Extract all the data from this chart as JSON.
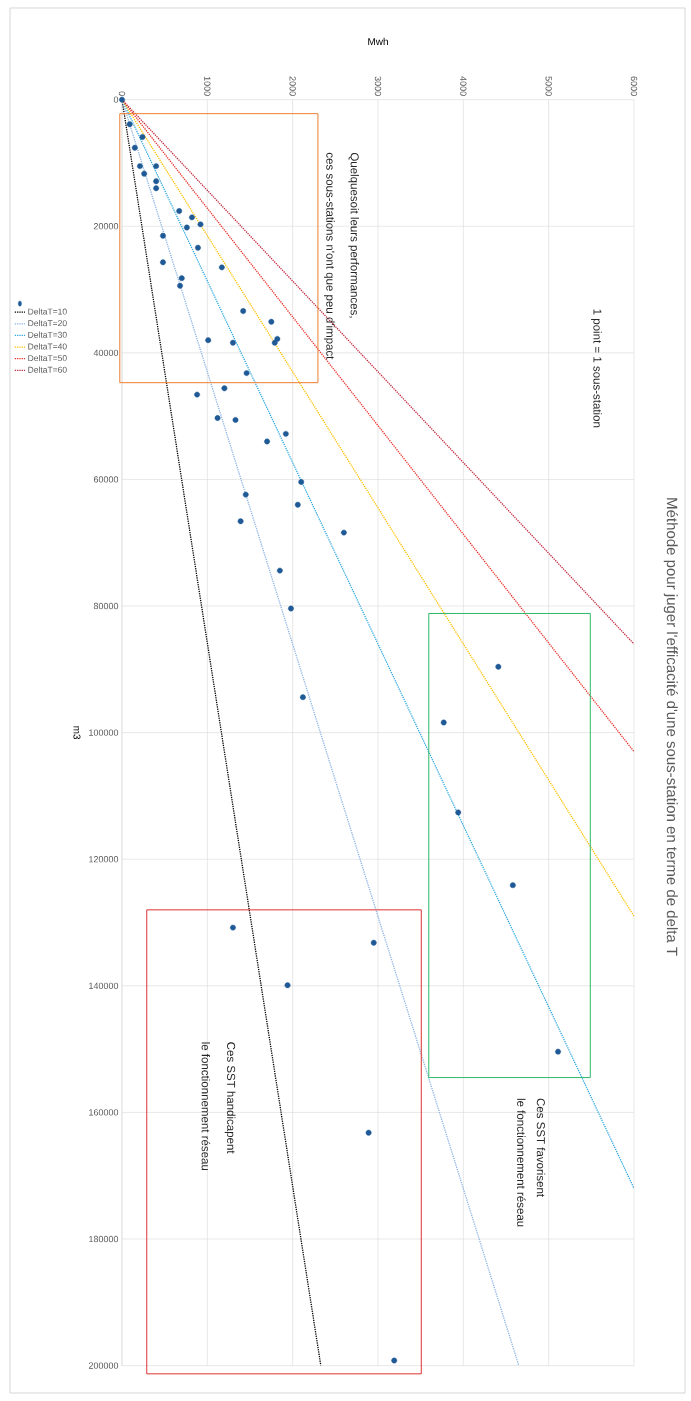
{
  "chart_data": {
    "type": "scatter",
    "title": "Méthode pour juger l'efficacité d'une sous-station en terme de delta T",
    "xlabel": "Mwh",
    "ylabel": "m3",
    "xlim": [
      0,
      6000
    ],
    "xticks": [
      0,
      1000,
      2000,
      3000,
      4000,
      5000,
      6000
    ],
    "ylim": [
      200000,
      0
    ],
    "yticks": [
      0,
      20000,
      40000,
      60000,
      80000,
      100000,
      120000,
      140000,
      160000,
      180000,
      200000
    ],
    "grid": true,
    "legend": "left",
    "line_style": "dotted",
    "annotations": [
      "1 point = 1 sous-station",
      "Quelquesoit leurs performances,",
      "ces sous-stations n'ont que peu d'impact",
      "Ces SST favorisent",
      "le fonctionnement réseau",
      "Ces SST handicapent",
      "le fonctionnement réseau"
    ],
    "series": [
      {
        "color": "#1f5a96",
        "marker": "circle",
        "x": [
          0,
          90,
          240,
          150,
          210,
          400,
          260,
          400,
          400,
          670,
          820,
          920,
          760,
          480,
          890,
          480,
          1170,
          700,
          680,
          1420,
          1750,
          1820,
          1790,
          1010,
          1300,
          1460,
          1200,
          880,
          1120,
          1330,
          1920,
          1700,
          2100,
          1450,
          2060,
          1390,
          2600,
          1850,
          1980,
          4410,
          2120,
          3770,
          3940,
          4580,
          1300,
          2950,
          1940,
          5110,
          2890,
          3190
        ],
        "values": [
          0,
          3900,
          5900,
          7600,
          10500,
          10500,
          11700,
          12900,
          14000,
          17600,
          18600,
          19700,
          20200,
          21500,
          23400,
          25700,
          26500,
          28200,
          29400,
          33400,
          35100,
          37800,
          38400,
          38000,
          38400,
          43200,
          45600,
          46600,
          50300,
          50600,
          52800,
          54000,
          60400,
          62400,
          64000,
          66600,
          68400,
          74400,
          80400,
          89600,
          94400,
          98400,
          112600,
          124100,
          130800,
          133200,
          139900,
          150400,
          163200,
          199200
        ]
      },
      {
        "type": "line",
        "name": "DeltaT=10",
        "color": "#000000",
        "x": [
          0,
          2330
        ],
        "values": [
          0,
          200000
        ]
      },
      {
        "type": "line",
        "name": "DeltaT=20",
        "color": "#8db4e2",
        "x": [
          0,
          4650
        ],
        "values": [
          0,
          200000
        ]
      },
      {
        "type": "line",
        "name": "DeltaT=30",
        "color": "#2ea8e0",
        "x": [
          0,
          6000
        ],
        "values": [
          0,
          172000
        ]
      },
      {
        "type": "line",
        "name": "DeltaT=40",
        "color": "#ffc000",
        "x": [
          0,
          6000
        ],
        "values": [
          0,
          129000
        ]
      },
      {
        "type": "line",
        "name": "DeltaT=50",
        "color": "#e8302a",
        "x": [
          0,
          6000
        ],
        "values": [
          0,
          103000
        ]
      },
      {
        "type": "line",
        "name": "DeltaT=60",
        "color": "#c0283c",
        "x": [
          0,
          6000
        ],
        "values": [
          0,
          86000
        ]
      }
    ]
  }
}
